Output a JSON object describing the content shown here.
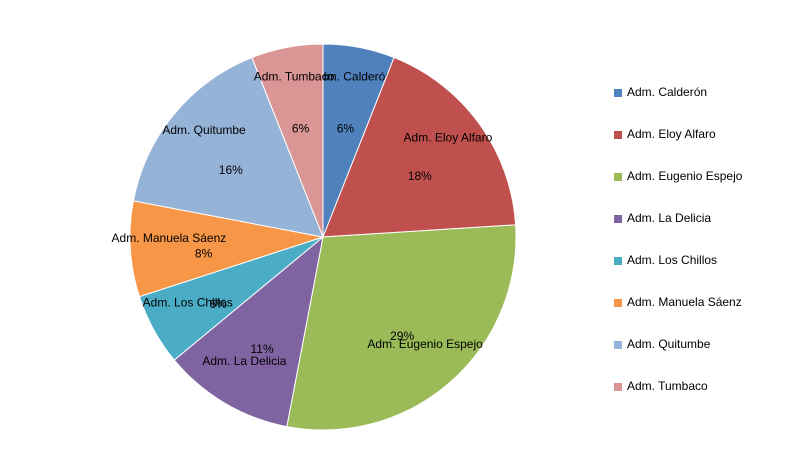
{
  "chart_data": {
    "type": "pie",
    "categories": [
      "Adm. Calderón",
      "Adm. Eloy Alfaro",
      "Adm. Eugenio Espejo",
      "Adm. La Delicia",
      "Adm. Los Chillos",
      "Adm. Manuela Sáenz",
      "Adm. Quitumbe",
      "Adm. Tumbaco"
    ],
    "values": [
      6,
      18,
      29,
      11,
      6,
      8,
      16,
      6
    ],
    "value_labels": [
      "6%",
      "18%",
      "29%",
      "11%",
      "6%",
      "8%",
      "16%",
      "6%"
    ],
    "colors": [
      "#4f81bd",
      "#c0504d",
      "#9bbb59",
      "#8064a2",
      "#4bacc6",
      "#f79646",
      "#95b3d7",
      "#d99694"
    ],
    "legend": "right"
  }
}
